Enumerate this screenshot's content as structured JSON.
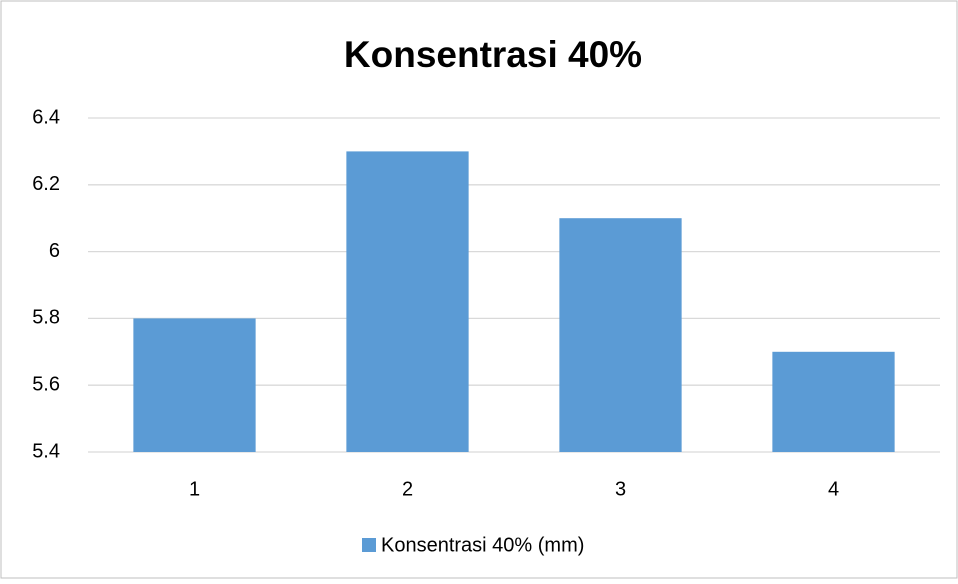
{
  "chart_data": {
    "type": "bar",
    "title": "Konsentrasi 40%",
    "categories": [
      "1",
      "2",
      "3",
      "4"
    ],
    "series": [
      {
        "name": "Konsentrasi 40% (mm)",
        "color": "#5b9bd5",
        "values": [
          5.8,
          6.3,
          6.1,
          5.7
        ]
      }
    ],
    "ylim": [
      5.4,
      6.4
    ],
    "yticks": [
      5.4,
      5.6,
      5.8,
      6,
      6.2,
      6.4
    ],
    "grid": true,
    "legend": "bottom"
  }
}
